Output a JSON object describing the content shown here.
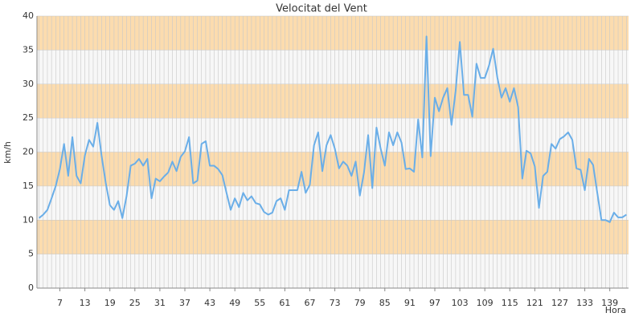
{
  "chart_data": {
    "type": "line",
    "title": "Velocitat del Vent",
    "x_label": "Hora",
    "y_label": "km/h",
    "x": [
      2,
      3,
      4,
      5,
      6,
      7,
      8,
      9,
      10,
      11,
      12,
      13,
      14,
      15,
      16,
      17,
      18,
      19,
      20,
      21,
      22,
      23,
      24,
      25,
      26,
      27,
      28,
      29,
      30,
      31,
      32,
      33,
      34,
      35,
      36,
      37,
      38,
      39,
      40,
      41,
      42,
      43,
      44,
      45,
      46,
      47,
      48,
      49,
      50,
      51,
      52,
      53,
      54,
      55,
      56,
      57,
      58,
      59,
      60,
      61,
      62,
      63,
      64,
      65,
      66,
      67,
      68,
      69,
      70,
      71,
      72,
      73,
      74,
      75,
      76,
      77,
      78,
      79,
      80,
      81,
      82,
      83,
      84,
      85,
      86,
      87,
      88,
      89,
      90,
      91,
      92,
      93,
      94,
      95,
      96,
      97,
      98,
      99,
      100,
      101,
      102,
      103,
      104,
      105,
      106,
      107,
      108,
      109,
      110,
      111,
      112,
      113,
      114,
      115,
      116,
      117,
      118,
      119,
      120,
      121,
      122,
      123,
      124,
      125,
      126,
      127,
      128,
      129,
      130,
      131,
      132,
      133,
      134,
      135,
      136,
      137,
      138,
      139,
      140,
      141,
      142,
      143
    ],
    "series": [
      {
        "name": "Velocitat",
        "color": "#6aaee8",
        "values": [
          10.3,
          10.8,
          11.5,
          13.2,
          15,
          17.5,
          21.2,
          16.5,
          22.2,
          16.5,
          15.4,
          19.5,
          21.8,
          20.8,
          24.3,
          19.5,
          15.5,
          12.2,
          11.5,
          12.8,
          10.3,
          13.5,
          18,
          18.3,
          19,
          18,
          19,
          13.2,
          16.1,
          15.7,
          16.4,
          17,
          18.6,
          17.2,
          19.3,
          20.1,
          22.2,
          15.4,
          15.8,
          21.2,
          21.6,
          18,
          18,
          17.5,
          16.6,
          14,
          11.5,
          13.2,
          11.9,
          14,
          12.9,
          13.5,
          12.5,
          12.3,
          11.2,
          10.8,
          11.1,
          12.8,
          13.2,
          11.5,
          14.4,
          14.4,
          14.4,
          17.1,
          14,
          15.2,
          21,
          22.9,
          17.2,
          21,
          22.5,
          20.5,
          17.6,
          18.6,
          18,
          16.5,
          18.6,
          13.6,
          17,
          22.5,
          14.7,
          23.6,
          20.5,
          18,
          22.9,
          21,
          22.9,
          21.4,
          17.5,
          17.6,
          17.1,
          24.8,
          19.2,
          37,
          19.4,
          28,
          26,
          28,
          29.4,
          24,
          29,
          36.2,
          28.4,
          28.4,
          25.2,
          33,
          30.9,
          30.9,
          32.7,
          35.2,
          31,
          28,
          29.4,
          27.4,
          29.4,
          26.6,
          16.1,
          20.2,
          19.8,
          17.9,
          11.8,
          16.5,
          17.1,
          21.2,
          20.5,
          21.9,
          22.3,
          22.9,
          21.8,
          17.6,
          17.4,
          14.4,
          19,
          18.1,
          14,
          10,
          10,
          9.7,
          11.1,
          10.4,
          10.4,
          10.8
        ]
      }
    ],
    "xlim": [
      1.5,
      143.5
    ],
    "xticks": [
      7,
      13,
      19,
      25,
      31,
      37,
      43,
      49,
      55,
      61,
      67,
      73,
      79,
      85,
      91,
      97,
      103,
      109,
      115,
      121,
      127,
      133,
      139
    ],
    "ylim": [
      0,
      40
    ],
    "yticks": [
      0,
      5,
      10,
      15,
      20,
      25,
      30,
      35,
      40
    ],
    "grid": true,
    "band_color": "#fcdcae",
    "plot_background": "#f7f7f7",
    "grid_color": "#c8c8c8"
  }
}
